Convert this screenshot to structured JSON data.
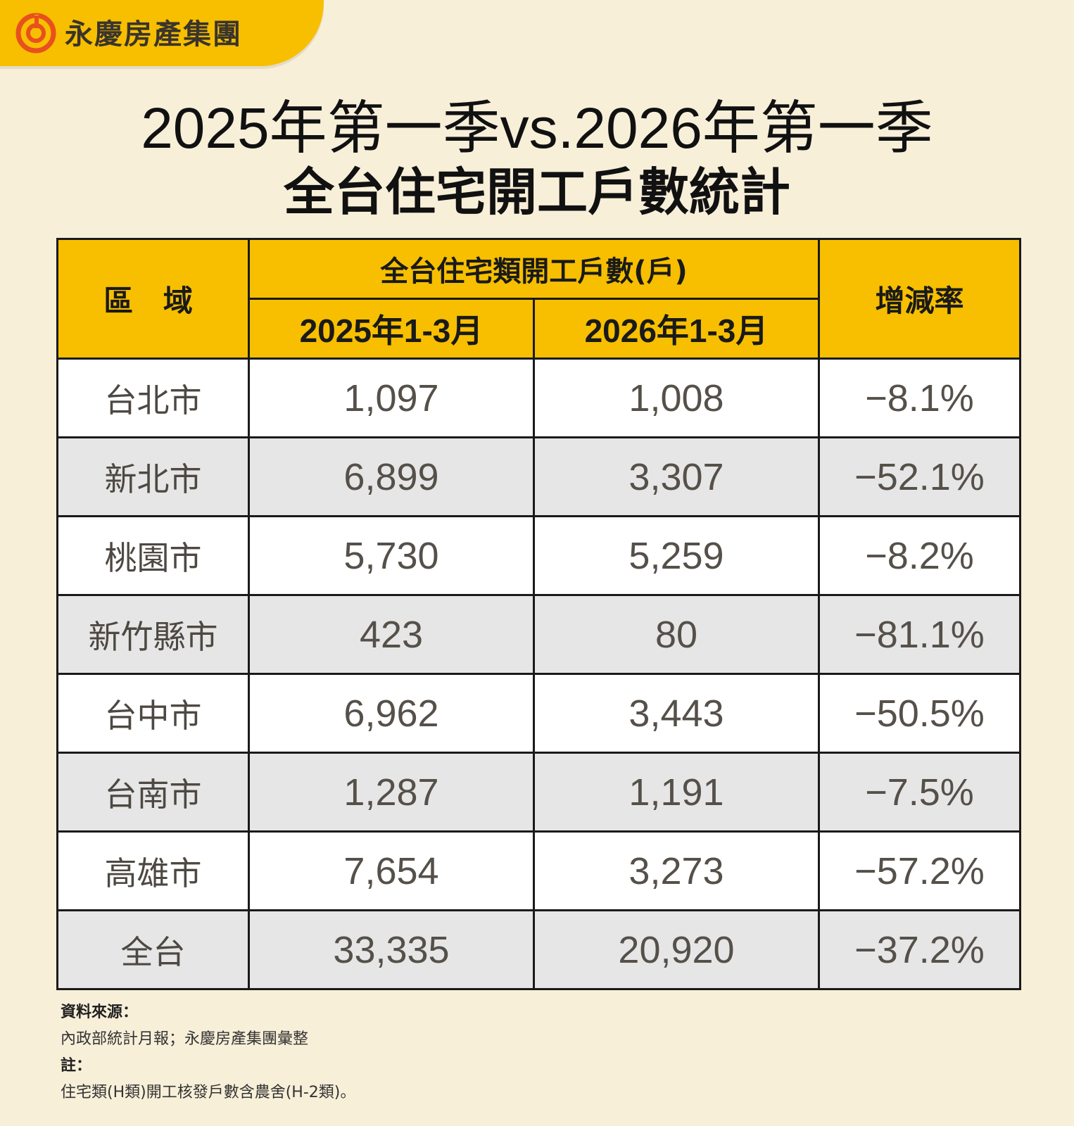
{
  "brand": {
    "name": "永慶房產集團",
    "color": "#f7bf00"
  },
  "title": {
    "line1": "2025年第一季vs.2026年第一季",
    "line2": "全台住宅開工戶數統計"
  },
  "chart_data": {
    "type": "table",
    "headers": {
      "region": "區 域",
      "group": "全台住宅類開工戶數(戶)",
      "col_2025": "2025年1-3月",
      "col_2026": "2026年1-3月",
      "rate": "增減率"
    },
    "rows": [
      {
        "region": "台北市",
        "y2025": "1,097",
        "y2026": "1,008",
        "rate": "−8.1%"
      },
      {
        "region": "新北市",
        "y2025": "6,899",
        "y2026": "3,307",
        "rate": "−52.1%"
      },
      {
        "region": "桃園市",
        "y2025": "5,730",
        "y2026": "5,259",
        "rate": "−8.2%"
      },
      {
        "region": "新竹縣市",
        "y2025": "423",
        "y2026": "80",
        "rate": "−81.1%"
      },
      {
        "region": "台中市",
        "y2025": "6,962",
        "y2026": "3,443",
        "rate": "−50.5%"
      },
      {
        "region": "台南市",
        "y2025": "1,287",
        "y2026": "1,191",
        "rate": "−7.5%"
      },
      {
        "region": "高雄市",
        "y2025": "7,654",
        "y2026": "3,273",
        "rate": "−57.2%"
      },
      {
        "region": "全台",
        "y2025": "33,335",
        "y2026": "20,920",
        "rate": "−37.2%"
      }
    ]
  },
  "notes": {
    "source_label": "資料來源：",
    "source_text": "內政部統計月報；永慶房產集團彙整",
    "note_label": "註：",
    "note_text": "住宅類(H類)開工核發戶數含農舍(H-2類)。"
  }
}
